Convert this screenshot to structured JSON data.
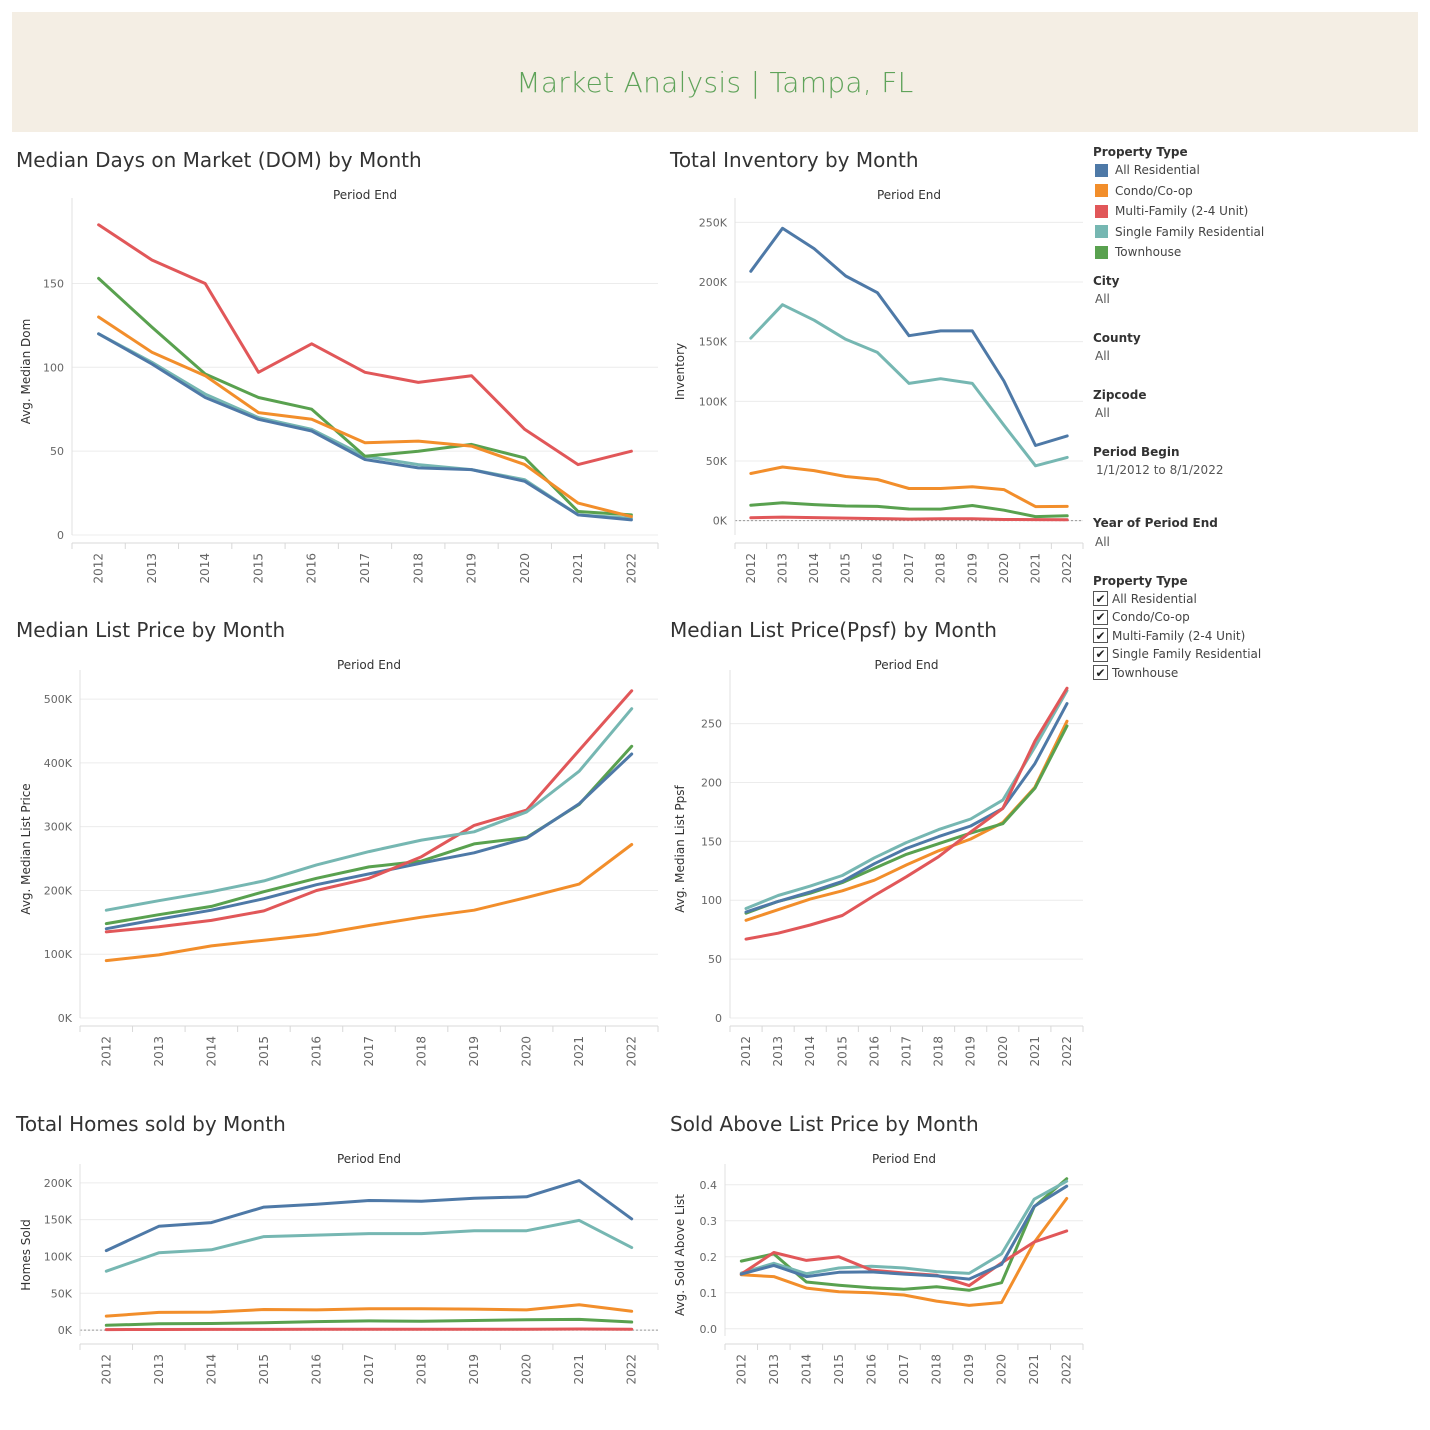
{
  "dashboard": {
    "title": "Market Analysis | Tampa, FL"
  },
  "colors": {
    "All Residential": "#4e79a7",
    "Condo/Co-op": "#f28e2b",
    "Multi-Family (2-4 Unit)": "#e15759",
    "Single Family Residential": "#76b7b2",
    "Townhouse": "#59a14f"
  },
  "legend": {
    "title": "Property Type",
    "items": [
      "All Residential",
      "Condo/Co-op",
      "Multi-Family (2-4 Unit)",
      "Single Family Residential",
      "Townhouse"
    ]
  },
  "filters": [
    {
      "label": "City",
      "value": "All"
    },
    {
      "label": "County",
      "value": "All"
    },
    {
      "label": "Zipcode",
      "value": "All"
    },
    {
      "label": "Period Begin",
      "value": "1/1/2012 to 8/1/2022"
    },
    {
      "label": "Year of Period End",
      "value": "All"
    }
  ],
  "type_filter": {
    "title": "Property Type",
    "check_glyph": "✔",
    "items": [
      "All Residential",
      "Condo/Co-op",
      "Multi-Family (2-4 Unit)",
      "Single Family Residential",
      "Townhouse"
    ]
  },
  "chart_data": [
    {
      "type": "line",
      "title": "Median Days on Market (DOM) by Month",
      "xlabel": "Period End",
      "ylabel": "Avg. Median Dom",
      "x": [
        "2012",
        "2013",
        "2014",
        "2015",
        "2016",
        "2017",
        "2018",
        "2019",
        "2020",
        "2021",
        "2022"
      ],
      "ylim": [
        0,
        195
      ],
      "yticks": [
        0,
        50,
        100,
        150
      ],
      "ytick_labels": [
        "0",
        "50",
        "100",
        "150"
      ],
      "zero_line": false,
      "series": [
        {
          "name": "Single Family Residential",
          "values": [
            120,
            103,
            84,
            70,
            63,
            47,
            42,
            39,
            33,
            12,
            10
          ]
        },
        {
          "name": "Townhouse",
          "values": [
            153,
            124,
            96,
            82,
            75,
            47,
            50,
            54,
            46,
            14,
            12
          ]
        },
        {
          "name": "Condo/Co-op",
          "values": [
            130,
            109,
            95,
            73,
            69,
            55,
            56,
            53,
            42,
            19,
            11
          ]
        },
        {
          "name": "All Residential",
          "values": [
            120,
            102,
            82,
            69,
            62,
            45,
            40,
            39,
            32,
            12,
            9
          ]
        },
        {
          "name": "Multi-Family (2-4 Unit)",
          "values": [
            185,
            164,
            150,
            97,
            114,
            97,
            91,
            95,
            63,
            42,
            50
          ]
        }
      ]
    },
    {
      "type": "line",
      "title": "Total Inventory  by Month",
      "xlabel": "Period End",
      "ylabel": "Inventory",
      "x": [
        "2012",
        "2013",
        "2014",
        "2015",
        "2016",
        "2017",
        "2018",
        "2019",
        "2020",
        "2021",
        "2022"
      ],
      "ylim": [
        -12000,
        262000
      ],
      "yticks": [
        0,
        50000,
        100000,
        150000,
        200000,
        250000
      ],
      "ytick_labels": [
        "0K",
        "50K",
        "100K",
        "150K",
        "200K",
        "250K"
      ],
      "zero_line": true,
      "series": [
        {
          "name": "Multi-Family (2-4 Unit)",
          "values": [
            2500,
            3000,
            2600,
            2200,
            1700,
            1300,
            1600,
            1600,
            1000,
            900,
            800
          ]
        },
        {
          "name": "Townhouse",
          "values": [
            13000,
            15000,
            13500,
            12300,
            12000,
            9800,
            9700,
            12700,
            8800,
            3400,
            4100
          ]
        },
        {
          "name": "Condo/Co-op",
          "values": [
            39500,
            45000,
            42000,
            37000,
            34500,
            27000,
            27000,
            28500,
            26000,
            11800,
            12000
          ]
        },
        {
          "name": "Single Family Residential",
          "values": [
            153000,
            181000,
            168000,
            152000,
            141000,
            115000,
            119000,
            115000,
            80000,
            46000,
            53000
          ]
        },
        {
          "name": "All Residential",
          "values": [
            209000,
            245000,
            228000,
            205000,
            191000,
            155000,
            159000,
            159000,
            117000,
            63000,
            71000
          ]
        }
      ]
    },
    {
      "type": "line",
      "title": "Median List Price by Month",
      "xlabel": "Period End",
      "ylabel": "Avg. Median List Price",
      "x": [
        "2012",
        "2013",
        "2014",
        "2015",
        "2016",
        "2017",
        "2018",
        "2019",
        "2020",
        "2021",
        "2022"
      ],
      "ylim": [
        0,
        530000
      ],
      "yticks": [
        0,
        100000,
        200000,
        300000,
        400000,
        500000
      ],
      "ytick_labels": [
        "0K",
        "100K",
        "200K",
        "300K",
        "400K",
        "500K"
      ],
      "zero_line": false,
      "series": [
        {
          "name": "Condo/Co-op",
          "values": [
            90000,
            99000,
            113000,
            122000,
            131000,
            145000,
            158000,
            169000,
            189000,
            210000,
            272000
          ]
        },
        {
          "name": "Townhouse",
          "values": [
            148000,
            162000,
            175000,
            198000,
            219000,
            237000,
            246000,
            273000,
            283000,
            335000,
            426000
          ]
        },
        {
          "name": "All Residential",
          "values": [
            140000,
            155000,
            169000,
            187000,
            209000,
            226000,
            243000,
            259000,
            282000,
            336000,
            414000
          ]
        },
        {
          "name": "Multi-Family (2-4 Unit)",
          "values": [
            135000,
            143000,
            153000,
            168000,
            200000,
            219000,
            253000,
            302000,
            326000,
            420000,
            513000
          ]
        },
        {
          "name": "Single Family Residential",
          "values": [
            169000,
            184000,
            198000,
            215000,
            240000,
            261000,
            279000,
            292000,
            323000,
            387000,
            485000
          ]
        }
      ]
    },
    {
      "type": "line",
      "title": "Median List Price(Ppsf) by Month",
      "xlabel": "Period End",
      "ylabel": "Avg. Median List Ppsf",
      "x": [
        "2012",
        "2013",
        "2014",
        "2015",
        "2016",
        "2017",
        "2018",
        "2019",
        "2020",
        "2021",
        "2022"
      ],
      "ylim": [
        0,
        287
      ],
      "yticks": [
        0,
        50,
        100,
        150,
        200,
        250
      ],
      "ytick_labels": [
        "0",
        "50",
        "100",
        "150",
        "200",
        "250"
      ],
      "zero_line": false,
      "series": [
        {
          "name": "Condo/Co-op",
          "values": [
            83,
            92,
            101,
            108,
            117,
            130,
            142,
            152,
            166,
            196,
            252
          ]
        },
        {
          "name": "Townhouse",
          "values": [
            89,
            99,
            106,
            115,
            127,
            139,
            148,
            157,
            165,
            195,
            248
          ]
        },
        {
          "name": "Single Family Residential",
          "values": [
            93,
            104,
            112,
            121,
            136,
            149,
            160,
            169,
            185,
            230,
            278
          ]
        },
        {
          "name": "All Residential",
          "values": [
            90,
            99,
            107,
            116,
            131,
            144,
            154,
            163,
            178,
            216,
            267
          ]
        },
        {
          "name": "Multi-Family (2-4 Unit)",
          "values": [
            67,
            72,
            79,
            87,
            104,
            120,
            137,
            158,
            178,
            235,
            280
          ]
        }
      ]
    },
    {
      "type": "line",
      "title": "Total Homes sold by Month",
      "xlabel": "Period End",
      "ylabel": "Homes Sold",
      "x": [
        "2012",
        "2013",
        "2014",
        "2015",
        "2016",
        "2017",
        "2018",
        "2019",
        "2020",
        "2021",
        "2022"
      ],
      "ylim": [
        -8000,
        212000
      ],
      "yticks": [
        0,
        50000,
        100000,
        150000,
        200000
      ],
      "ytick_labels": [
        "0K",
        "50K",
        "100K",
        "150K",
        "200K"
      ],
      "zero_line": true,
      "series": [
        {
          "name": "Multi-Family (2-4 Unit)",
          "values": [
            700,
            800,
            900,
            1000,
            1100,
            1200,
            1200,
            1300,
            1300,
            1500,
            1100
          ]
        },
        {
          "name": "Townhouse",
          "values": [
            6500,
            8500,
            9000,
            10000,
            11500,
            12500,
            12000,
            13000,
            14000,
            14500,
            11000
          ]
        },
        {
          "name": "Condo/Co-op",
          "values": [
            19000,
            24000,
            24500,
            28000,
            27500,
            29000,
            29000,
            28500,
            27500,
            34500,
            25500
          ]
        },
        {
          "name": "Single Family Residential",
          "values": [
            80000,
            105000,
            109000,
            127000,
            129000,
            131000,
            131000,
            135000,
            135000,
            149000,
            112000
          ]
        },
        {
          "name": "All Residential",
          "values": [
            108000,
            141000,
            146000,
            167000,
            171000,
            176000,
            175000,
            179000,
            181000,
            203000,
            151000
          ]
        }
      ]
    },
    {
      "type": "line",
      "title": "Sold Above List Price by Month",
      "xlabel": "Period End",
      "ylabel": "Avg. Sold Above List",
      "x": [
        "2012",
        "2013",
        "2014",
        "2015",
        "2016",
        "2017",
        "2018",
        "2019",
        "2020",
        "2021",
        "2022"
      ],
      "ylim": [
        -0.02,
        0.43
      ],
      "yticks": [
        0,
        0.1,
        0.2,
        0.3,
        0.4
      ],
      "ytick_labels": [
        "0.0",
        "0.1",
        "0.2",
        "0.3",
        "0.4"
      ],
      "zero_line": false,
      "series": [
        {
          "name": "Condo/Co-op",
          "values": [
            0.15,
            0.145,
            0.113,
            0.103,
            0.1,
            0.094,
            0.077,
            0.065,
            0.073,
            0.24,
            0.362
          ]
        },
        {
          "name": "Townhouse",
          "values": [
            0.188,
            0.208,
            0.13,
            0.121,
            0.114,
            0.11,
            0.117,
            0.107,
            0.128,
            0.339,
            0.417
          ]
        },
        {
          "name": "Single Family Residential",
          "values": [
            0.155,
            0.182,
            0.153,
            0.169,
            0.174,
            0.169,
            0.159,
            0.154,
            0.208,
            0.36,
            0.41
          ]
        },
        {
          "name": "Multi-Family (2-4 Unit)",
          "values": [
            0.152,
            0.212,
            0.19,
            0.2,
            0.163,
            0.155,
            0.149,
            0.12,
            0.183,
            0.241,
            0.272
          ]
        },
        {
          "name": "All Residential",
          "values": [
            0.152,
            0.176,
            0.145,
            0.157,
            0.158,
            0.152,
            0.147,
            0.138,
            0.179,
            0.34,
            0.396
          ]
        }
      ]
    }
  ]
}
